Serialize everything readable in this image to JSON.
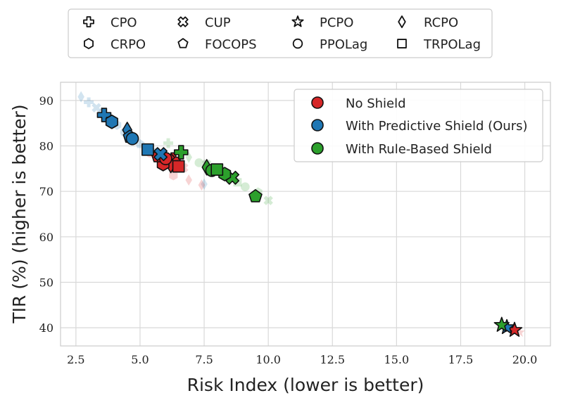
{
  "chart_data": {
    "type": "scatter",
    "title": "",
    "xlabel": "Risk Index (lower is better)",
    "ylabel": "TIR (%) (higher is better)",
    "xlim": [
      1.9,
      21.0
    ],
    "ylim": [
      36.0,
      94.0
    ],
    "x_ticks": [
      "2.5",
      "5.0",
      "7.5",
      "10.0",
      "12.5",
      "15.0",
      "17.5",
      "20.0"
    ],
    "x_tick_values": [
      2.5,
      5.0,
      7.5,
      10.0,
      12.5,
      15.0,
      17.5,
      20.0
    ],
    "y_ticks": [
      "40",
      "50",
      "60",
      "70",
      "80",
      "90"
    ],
    "y_tick_values": [
      40,
      50,
      60,
      70,
      80,
      90
    ],
    "grid": true,
    "marker_legend": [
      {
        "label": "CPO",
        "marker": "cross"
      },
      {
        "label": "CUP",
        "marker": "x"
      },
      {
        "label": "PCPO",
        "marker": "star"
      },
      {
        "label": "RCPO",
        "marker": "diamond"
      },
      {
        "label": "CRPO",
        "marker": "hexagon"
      },
      {
        "label": "FOCOPS",
        "marker": "pentagon"
      },
      {
        "label": "PPOLag",
        "marker": "circle"
      },
      {
        "label": "TRPOLag",
        "marker": "square"
      }
    ],
    "color_legend": [
      {
        "label": "No Shield",
        "color": "#d62728"
      },
      {
        "label": "With Predictive Shield (Ours)",
        "color": "#1f77b4"
      },
      {
        "label": "With Rule-Based Shield",
        "color": "#2ca02c"
      }
    ],
    "series": [
      {
        "name": "No Shield",
        "color": "#d62728",
        "points": [
          {
            "algo": "CPO",
            "marker": "cross",
            "x": 6.3,
            "y": 77.0
          },
          {
            "algo": "CUP",
            "marker": "x",
            "x": 6.1,
            "y": 76.8
          },
          {
            "algo": "PCPO",
            "marker": "star",
            "x": 19.6,
            "y": 39.5
          },
          {
            "algo": "RCPO",
            "marker": "diamond",
            "x": 6.2,
            "y": 75.8
          },
          {
            "algo": "CRPO",
            "marker": "hexagon",
            "x": 5.9,
            "y": 76.0
          },
          {
            "algo": "FOCOPS",
            "marker": "pentagon",
            "x": 5.7,
            "y": 77.7
          },
          {
            "algo": "PPOLag",
            "marker": "circle",
            "x": 6.0,
            "y": 77.2
          },
          {
            "algo": "TRPOLag",
            "marker": "square",
            "x": 6.5,
            "y": 75.5
          }
        ]
      },
      {
        "name": "With Predictive Shield (Ours)",
        "color": "#1f77b4",
        "points": [
          {
            "algo": "CPO",
            "marker": "cross",
            "x": 3.6,
            "y": 86.8
          },
          {
            "algo": "CUP",
            "marker": "x",
            "x": 5.8,
            "y": 78.2
          },
          {
            "algo": "PCPO",
            "marker": "star",
            "x": 19.3,
            "y": 40.1
          },
          {
            "algo": "RCPO",
            "marker": "diamond",
            "x": 4.5,
            "y": 83.5
          },
          {
            "algo": "CRPO",
            "marker": "hexagon",
            "x": 3.9,
            "y": 85.3
          },
          {
            "algo": "FOCOPS",
            "marker": "pentagon",
            "x": 4.6,
            "y": 82.0
          },
          {
            "algo": "PPOLag",
            "marker": "circle",
            "x": 4.7,
            "y": 81.6
          },
          {
            "algo": "TRPOLag",
            "marker": "square",
            "x": 5.3,
            "y": 79.2
          }
        ]
      },
      {
        "name": "With Rule-Based Shield",
        "color": "#2ca02c",
        "points": [
          {
            "algo": "CPO",
            "marker": "cross",
            "x": 6.6,
            "y": 78.6
          },
          {
            "algo": "CUP",
            "marker": "x",
            "x": 8.6,
            "y": 73.0
          },
          {
            "algo": "PCPO",
            "marker": "star",
            "x": 19.1,
            "y": 40.6
          },
          {
            "algo": "RCPO",
            "marker": "diamond",
            "x": 7.6,
            "y": 75.3
          },
          {
            "algo": "CRPO",
            "marker": "hexagon",
            "x": 8.3,
            "y": 73.8
          },
          {
            "algo": "FOCOPS",
            "marker": "pentagon",
            "x": 9.5,
            "y": 68.9
          },
          {
            "algo": "PPOLag",
            "marker": "circle",
            "x": 7.8,
            "y": 74.6
          },
          {
            "algo": "TRPOLag",
            "marker": "square",
            "x": 8.0,
            "y": 74.8
          }
        ]
      }
    ],
    "faded_points": [
      {
        "color": "#1f77b4",
        "marker": "diamond",
        "x": 2.7,
        "y": 90.8
      },
      {
        "color": "#1f77b4",
        "marker": "cross",
        "x": 3.0,
        "y": 89.6
      },
      {
        "color": "#1f77b4",
        "marker": "x",
        "x": 3.3,
        "y": 88.4
      },
      {
        "color": "#1f77b4",
        "marker": "diamond",
        "x": 3.5,
        "y": 87.4
      },
      {
        "color": "#1f77b4",
        "marker": "hexagon",
        "x": 4.1,
        "y": 84.6
      },
      {
        "color": "#1f77b4",
        "marker": "circle",
        "x": 4.4,
        "y": 83.0
      },
      {
        "color": "#1f77b4",
        "marker": "pentagon",
        "x": 5.0,
        "y": 80.4
      },
      {
        "color": "#1f77b4",
        "marker": "square",
        "x": 5.6,
        "y": 78.6
      },
      {
        "color": "#1f77b4",
        "marker": "diamond",
        "x": 7.5,
        "y": 71.6
      },
      {
        "color": "#d62728",
        "marker": "circle",
        "x": 5.4,
        "y": 78.4
      },
      {
        "color": "#d62728",
        "marker": "hexagon",
        "x": 6.3,
        "y": 73.5
      },
      {
        "color": "#d62728",
        "marker": "x",
        "x": 6.7,
        "y": 75.2
      },
      {
        "color": "#d62728",
        "marker": "diamond",
        "x": 6.9,
        "y": 72.5
      },
      {
        "color": "#d62728",
        "marker": "diamond",
        "x": 7.4,
        "y": 71.4
      },
      {
        "color": "#d62728",
        "marker": "star",
        "x": 19.8,
        "y": 39.0
      },
      {
        "color": "#2ca02c",
        "marker": "cross",
        "x": 6.1,
        "y": 80.6
      },
      {
        "color": "#2ca02c",
        "marker": "diamond",
        "x": 6.9,
        "y": 77.5
      },
      {
        "color": "#2ca02c",
        "marker": "circle",
        "x": 7.3,
        "y": 76.3
      },
      {
        "color": "#2ca02c",
        "marker": "x",
        "x": 7.6,
        "y": 76.0
      },
      {
        "color": "#2ca02c",
        "marker": "square",
        "x": 8.8,
        "y": 72.0
      },
      {
        "color": "#2ca02c",
        "marker": "circle",
        "x": 9.1,
        "y": 71.0
      },
      {
        "color": "#2ca02c",
        "marker": "hexagon",
        "x": 9.6,
        "y": 69.8
      },
      {
        "color": "#2ca02c",
        "marker": "x",
        "x": 10.0,
        "y": 68.0
      },
      {
        "color": "#2ca02c",
        "marker": "star",
        "x": 19.2,
        "y": 40.2
      }
    ]
  }
}
